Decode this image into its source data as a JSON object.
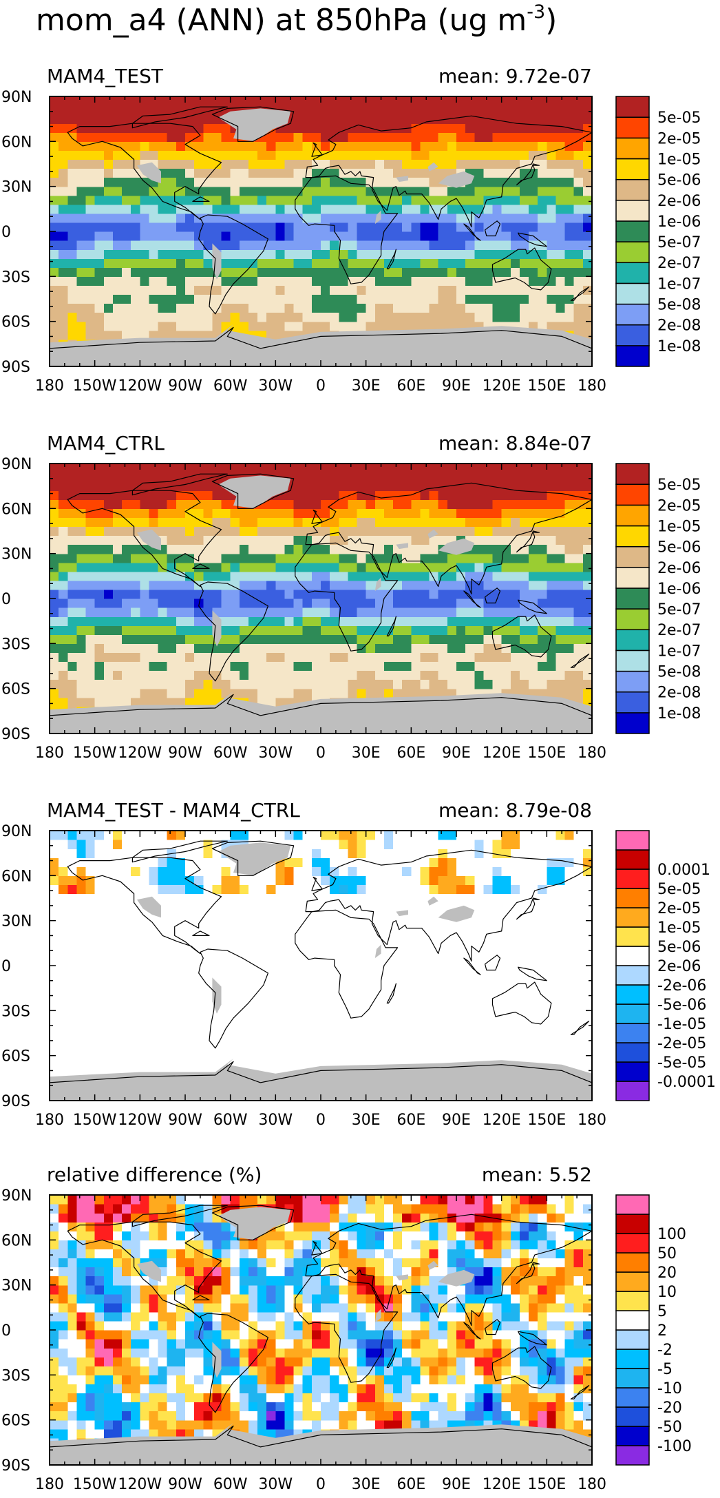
{
  "figure": {
    "title": "mom_a4 (ANN) at 850hPa (ug m",
    "title_superscript": "-3"
  },
  "chart_data": [
    {
      "type": "heatmap",
      "id": "test",
      "title": "MAM4_TEST",
      "mean_label": "mean: 9.72e-07",
      "mean": 9.72e-07,
      "xlim": [
        -180,
        180
      ],
      "ylim": [
        -90,
        90
      ],
      "x_ticks": [
        "180",
        "150W",
        "120W",
        "90W",
        "60W",
        "30W",
        "0",
        "30E",
        "60E",
        "90E",
        "120E",
        "150E",
        "180"
      ],
      "y_ticks": [
        "90N",
        "60N",
        "30N",
        "0",
        "30S",
        "60S",
        "90S"
      ],
      "colorbar": {
        "colors": [
          "#0000cd",
          "#3a5fe0",
          "#7d9ef5",
          "#aee0e6",
          "#20b2aa",
          "#9acd32",
          "#2e8b57",
          "#f5e6c8",
          "#deb887",
          "#ffd700",
          "#ffa500",
          "#ff4500",
          "#b22222"
        ],
        "labels": [
          "1e-08",
          "2e-08",
          "5e-08",
          "1e-07",
          "2e-07",
          "5e-07",
          "1e-06",
          "2e-06",
          "5e-06",
          "1e-05",
          "2e-05",
          "5e-05"
        ]
      },
      "missing_color": "#bebebe"
    },
    {
      "type": "heatmap",
      "id": "ctrl",
      "title": "MAM4_CTRL",
      "mean_label": "mean: 8.84e-07",
      "mean": 8.84e-07,
      "xlim": [
        -180,
        180
      ],
      "ylim": [
        -90,
        90
      ],
      "x_ticks": [
        "180",
        "150W",
        "120W",
        "90W",
        "60W",
        "30W",
        "0",
        "30E",
        "60E",
        "90E",
        "120E",
        "150E",
        "180"
      ],
      "y_ticks": [
        "90N",
        "60N",
        "30N",
        "0",
        "30S",
        "60S",
        "90S"
      ],
      "colorbar": {
        "colors": [
          "#0000cd",
          "#3a5fe0",
          "#7d9ef5",
          "#aee0e6",
          "#20b2aa",
          "#9acd32",
          "#2e8b57",
          "#f5e6c8",
          "#deb887",
          "#ffd700",
          "#ffa500",
          "#ff4500",
          "#b22222"
        ],
        "labels": [
          "1e-08",
          "2e-08",
          "5e-08",
          "1e-07",
          "2e-07",
          "5e-07",
          "1e-06",
          "2e-06",
          "5e-06",
          "1e-05",
          "2e-05",
          "5e-05"
        ]
      },
      "missing_color": "#bebebe"
    },
    {
      "type": "heatmap",
      "id": "diff",
      "title": "MAM4_TEST - MAM4_CTRL",
      "mean_label": "mean: 8.79e-08",
      "mean": 8.79e-08,
      "xlim": [
        -180,
        180
      ],
      "ylim": [
        -90,
        90
      ],
      "x_ticks": [
        "180",
        "150W",
        "120W",
        "90W",
        "60W",
        "30W",
        "0",
        "30E",
        "60E",
        "90E",
        "120E",
        "150E",
        "180"
      ],
      "y_ticks": [
        "90N",
        "60N",
        "30N",
        "0",
        "30S",
        "60S",
        "90S"
      ],
      "colorbar": {
        "colors": [
          "#8a2be2",
          "#0000cd",
          "#1e50dc",
          "#3c82f0",
          "#1eb4f0",
          "#00bfff",
          "#add8ff",
          "#ffffff",
          "#ffe34d",
          "#ffaa1e",
          "#ff7f00",
          "#ff1e1e",
          "#c80000",
          "#ff69b4"
        ],
        "labels": [
          "-0.0001",
          "-5e-05",
          "-2e-05",
          "-1e-05",
          "-5e-06",
          "-2e-06",
          "2e-06",
          "5e-06",
          "1e-05",
          "2e-05",
          "5e-05",
          "0.0001"
        ]
      },
      "missing_color": "#bebebe"
    },
    {
      "type": "heatmap",
      "id": "rel",
      "title": "relative difference (%)",
      "mean_label": "mean:  5.52",
      "mean": 5.52,
      "xlim": [
        -180,
        180
      ],
      "ylim": [
        -90,
        90
      ],
      "x_ticks": [
        "180",
        "150W",
        "120W",
        "90W",
        "60W",
        "30W",
        "0",
        "30E",
        "60E",
        "90E",
        "120E",
        "150E",
        "180"
      ],
      "y_ticks": [
        "90N",
        "60N",
        "30N",
        "0",
        "30S",
        "60S",
        "90S"
      ],
      "colorbar": {
        "colors": [
          "#8a2be2",
          "#0000cd",
          "#1e50dc",
          "#3c82f0",
          "#1eb4f0",
          "#00bfff",
          "#add8ff",
          "#ffffff",
          "#ffe34d",
          "#ffaa1e",
          "#ff7f00",
          "#ff1e1e",
          "#c80000",
          "#ff69b4"
        ],
        "labels": [
          "-100",
          "-50",
          "-20",
          "-10",
          "-5",
          "-2",
          "2",
          "5",
          "10",
          "20",
          "50",
          "100"
        ]
      },
      "missing_color": "#bebebe"
    }
  ]
}
